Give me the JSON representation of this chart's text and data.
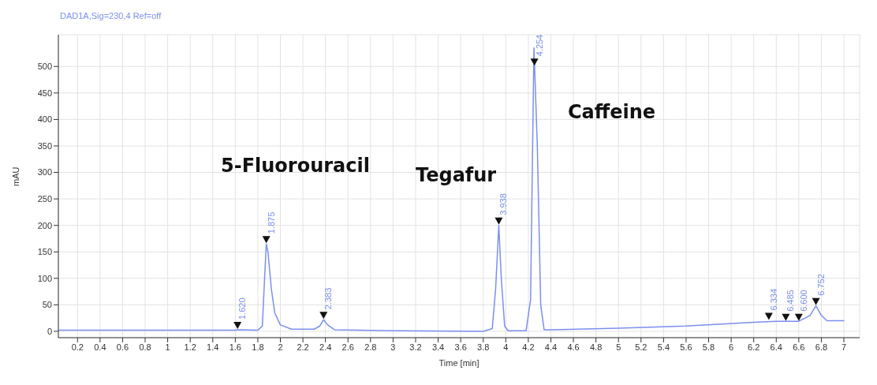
{
  "chart_data": {
    "type": "line",
    "title": "DAD1A,Sig=230,4 Ref=off",
    "xlabel": "Time [min]",
    "ylabel": "mAU",
    "grid": true,
    "xlim": [
      0.03,
      7.14
    ],
    "ylim": [
      -12,
      560
    ],
    "xticks": [
      0.2,
      0.4,
      0.6,
      0.8,
      1,
      1.2,
      1.4,
      1.6,
      1.8,
      2,
      2.2,
      2.4,
      2.6,
      2.8,
      3,
      3.2,
      3.4,
      3.6,
      3.8,
      4,
      4.2,
      4.4,
      4.6,
      4.8,
      5,
      5.2,
      5.4,
      5.6,
      5.8,
      6,
      6.2,
      6.4,
      6.6,
      6.8,
      7
    ],
    "yticks": [
      0,
      50,
      100,
      150,
      200,
      250,
      300,
      350,
      400,
      450,
      500
    ],
    "x": [
      0.03,
      1.6,
      1.62,
      1.8,
      1.84,
      1.86,
      1.875,
      1.89,
      1.92,
      1.95,
      2.0,
      2.1,
      2.3,
      2.35,
      2.383,
      2.42,
      2.48,
      3.0,
      3.8,
      3.88,
      3.91,
      3.938,
      3.96,
      3.99,
      4.02,
      4.18,
      4.22,
      4.25,
      4.28,
      4.31,
      4.34,
      4.4,
      5.0,
      5.6,
      6.2,
      6.4,
      6.6,
      6.7,
      6.752,
      6.8,
      6.85,
      7.0
    ],
    "series": [
      {
        "color": "#7b8ff0",
        "values": [
          2,
          2,
          3,
          2,
          10,
          100,
          165,
          150,
          80,
          35,
          12,
          4,
          4,
          10,
          22,
          12,
          3,
          1,
          0,
          5,
          80,
          200,
          100,
          10,
          1,
          1,
          60,
          535,
          350,
          50,
          3,
          3,
          6,
          10,
          17,
          19,
          19,
          30,
          48,
          30,
          20,
          20
        ]
      }
    ],
    "annotations": [
      {
        "text": "1.620",
        "x": 1.62,
        "y": 3
      },
      {
        "text": "1.875",
        "x": 1.875,
        "y": 165
      },
      {
        "text": "2.383",
        "x": 2.383,
        "y": 22
      },
      {
        "text": "3.938",
        "x": 3.938,
        "y": 200
      },
      {
        "text": "4.254",
        "x": 4.254,
        "y": 500
      },
      {
        "text": "6.334",
        "x": 6.334,
        "y": 20
      },
      {
        "text": "6.485",
        "x": 6.485,
        "y": 18
      },
      {
        "text": "6.600",
        "x": 6.6,
        "y": 18
      },
      {
        "text": "6.752",
        "x": 6.752,
        "y": 48
      },
      "5-Fluorouracil",
      "Tegafur",
      "Caffeine"
    ]
  }
}
